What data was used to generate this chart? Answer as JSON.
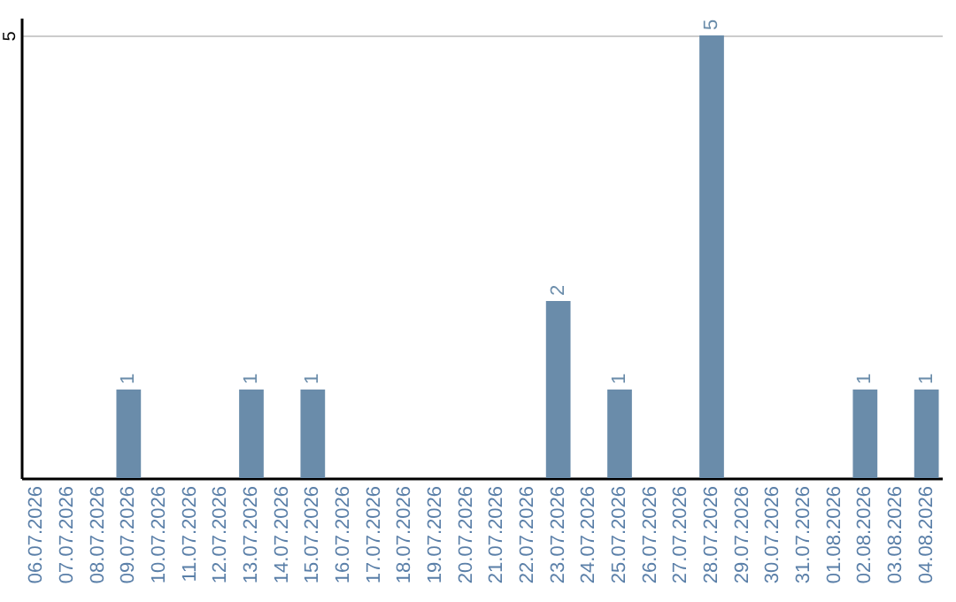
{
  "chart_data": {
    "type": "bar",
    "categories": [
      "06.07.2026",
      "07.07.2026",
      "08.07.2026",
      "09.07.2026",
      "10.07.2026",
      "11.07.2026",
      "12.07.2026",
      "13.07.2026",
      "14.07.2026",
      "15.07.2026",
      "16.07.2026",
      "17.07.2026",
      "18.07.2026",
      "19.07.2026",
      "20.07.2026",
      "21.07.2026",
      "22.07.2026",
      "23.07.2026",
      "24.07.2026",
      "25.07.2026",
      "26.07.2026",
      "27.07.2026",
      "28.07.2026",
      "29.07.2026",
      "30.07.2026",
      "31.07.2026",
      "01.08.2026",
      "02.08.2026",
      "03.08.2026",
      "04.08.2026"
    ],
    "values": [
      0,
      0,
      0,
      1,
      0,
      0,
      0,
      1,
      0,
      1,
      0,
      0,
      0,
      0,
      0,
      0,
      0,
      2,
      0,
      1,
      0,
      0,
      5,
      0,
      0,
      0,
      0,
      1,
      0,
      1
    ],
    "value_labels": [
      null,
      null,
      null,
      "1",
      null,
      null,
      null,
      "1",
      null,
      "1",
      null,
      null,
      null,
      null,
      null,
      null,
      null,
      "2",
      null,
      "1",
      null,
      null,
      "5",
      null,
      null,
      null,
      null,
      "1",
      null,
      "1"
    ],
    "color": "#6a8caa",
    "ylim": [
      0,
      5.2
    ],
    "yticks": [
      5
    ],
    "grid": "y"
  }
}
